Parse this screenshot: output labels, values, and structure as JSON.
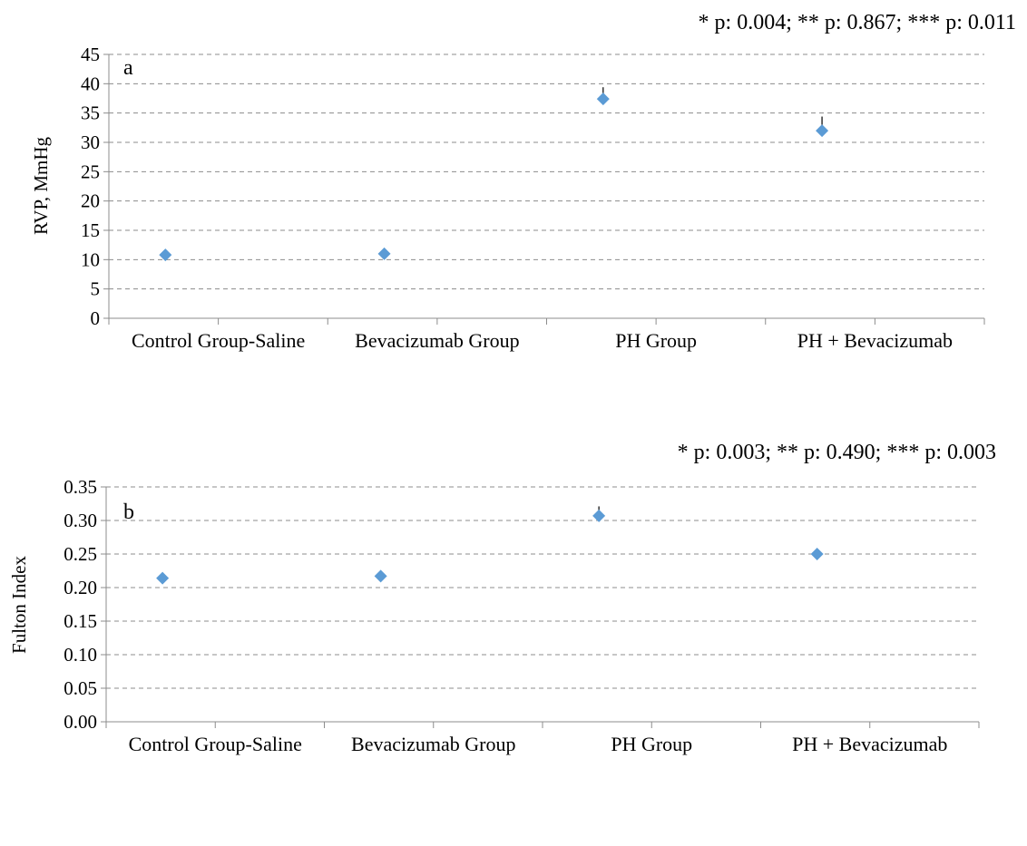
{
  "chart_data": [
    {
      "type": "scatter",
      "panel_label": "a",
      "pvalues": "* p: 0.004; ** p: 0.867; *** p: 0.011",
      "ylabel": "RVP, MmHg",
      "xlabel": "",
      "categories": [
        "Control Group-Saline",
        "Bevacizumab Group",
        "PH Group",
        "PH + Bevacizumab"
      ],
      "values": [
        10.8,
        11.0,
        37.4,
        32.0
      ],
      "errors": [
        0.6,
        0.5,
        2.0,
        2.4
      ],
      "ylim": [
        0,
        45
      ],
      "yticks": [
        "0",
        "5",
        "10",
        "15",
        "20",
        "25",
        "30",
        "35",
        "40",
        "45"
      ],
      "grid": true,
      "marker_color": "#5b9bd5"
    },
    {
      "type": "scatter",
      "panel_label": "b",
      "pvalues": "* p: 0.003; ** p: 0.490; *** p: 0.003",
      "ylabel": "Fulton Index",
      "xlabel": "",
      "categories": [
        "Control Group-Saline",
        "Bevacizumab Group",
        "PH Group",
        "PH + Bevacizumab"
      ],
      "values": [
        0.214,
        0.217,
        0.307,
        0.25
      ],
      "errors": [
        0.008,
        0.006,
        0.014,
        0.003
      ],
      "ylim": [
        0,
        0.35
      ],
      "yticks": [
        "0.00",
        "0.05",
        "0.10",
        "0.15",
        "0.20",
        "0.25",
        "0.30",
        "0.35"
      ],
      "grid": true,
      "marker_color": "#5b9bd5"
    }
  ]
}
